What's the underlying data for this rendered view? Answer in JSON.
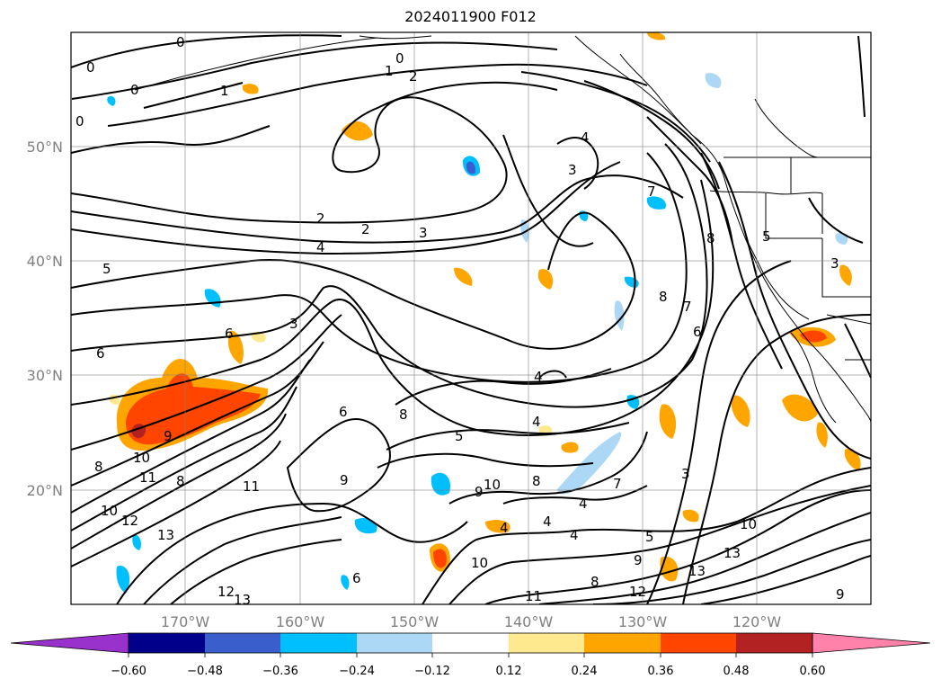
{
  "title": "2024011900 F012",
  "map": {
    "lon_labels": [
      "170°W",
      "160°W",
      "150°W",
      "140°W",
      "130°W",
      "120°W"
    ],
    "lat_labels": [
      "50°N",
      "40°N",
      "30°N",
      "20°N"
    ],
    "gridline_color": "#808080"
  },
  "colorbar": {
    "tick_labels": [
      "−0.60",
      "−0.48",
      "−0.36",
      "−0.24",
      "−0.12",
      "0.12",
      "0.24",
      "0.36",
      "0.48",
      "0.60"
    ],
    "colors": [
      "#9932cc",
      "#00008b",
      "#3a5fcd",
      "#00bfff",
      "#add8f5",
      "#ffffff",
      "#ffe98f",
      "#ffa500",
      "#ff4500",
      "#b22222",
      "#ff82ab"
    ],
    "extend": "both"
  },
  "chart_data": {
    "type": "heatmap",
    "title": "2024011900 F012",
    "x_tick_labels": [
      "170°W",
      "160°W",
      "150°W",
      "140°W",
      "130°W",
      "120°W"
    ],
    "y_tick_labels": [
      "50°N",
      "40°N",
      "30°N",
      "20°N"
    ],
    "colorbar_levels": [
      -0.6,
      -0.48,
      -0.36,
      -0.24,
      -0.12,
      0.12,
      0.24,
      0.36,
      0.48,
      0.6
    ],
    "contour_labels_visible": [
      "0",
      "1",
      "2",
      "3",
      "4",
      "5",
      "6",
      "7",
      "8",
      "9",
      "10",
      "11",
      "12",
      "13"
    ],
    "grid": true
  }
}
